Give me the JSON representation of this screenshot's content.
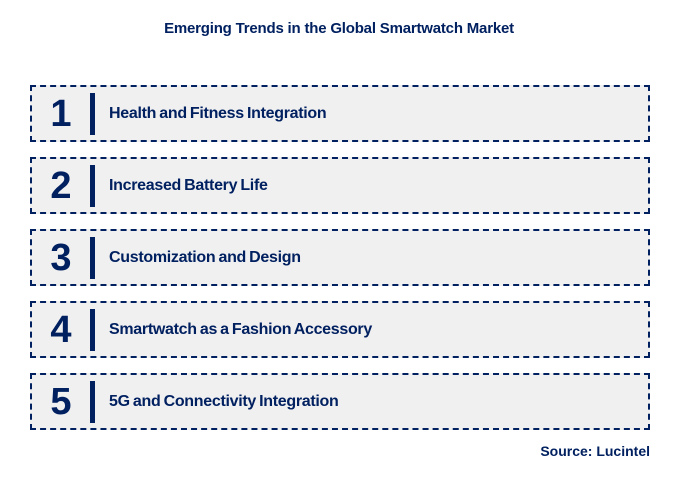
{
  "title": "Emerging Trends in the Global Smartwatch Market",
  "source": "Source: Lucintel",
  "colors": {
    "text_navy": "#002060",
    "row_background": "#f0f0f1",
    "row_border": "#002060",
    "page_background": "#ffffff"
  },
  "trends": [
    {
      "number": "1",
      "label": "Health and Fitness Integration"
    },
    {
      "number": "2",
      "label": "Increased Battery Life"
    },
    {
      "number": "3",
      "label": "Customization and Design"
    },
    {
      "number": "4",
      "label": "Smartwatch as a Fashion Accessory"
    },
    {
      "number": "5",
      "label": "5G and Connectivity Integration"
    }
  ]
}
